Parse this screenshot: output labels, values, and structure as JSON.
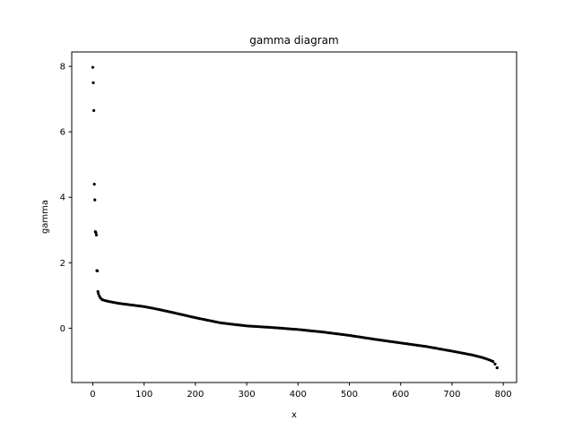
{
  "chart_data": {
    "type": "scatter",
    "title": "gamma diagram",
    "xlabel": "x",
    "ylabel": "gamma",
    "xlim": [
      -41,
      826
    ],
    "ylim": [
      -1.66,
      8.44
    ],
    "xticks": [
      0,
      100,
      200,
      300,
      400,
      500,
      600,
      700,
      800
    ],
    "yticks": [
      0,
      2,
      4,
      6,
      8
    ],
    "grid": false,
    "legend": "none",
    "marker_color": "#000000",
    "outliers": [
      {
        "x": 0,
        "y": 7.97
      },
      {
        "x": 1,
        "y": 7.5
      },
      {
        "x": 2,
        "y": 6.65
      },
      {
        "x": 3,
        "y": 4.4
      },
      {
        "x": 4,
        "y": 3.92
      },
      {
        "x": 5,
        "y": 2.95
      },
      {
        "x": 6,
        "y": 2.92
      },
      {
        "x": 7,
        "y": 2.85
      },
      {
        "x": 8,
        "y": 1.76
      },
      {
        "x": 9,
        "y": 1.75
      },
      {
        "x": 10,
        "y": 1.12
      },
      {
        "x": 11,
        "y": 1.05
      },
      {
        "x": 13,
        "y": 0.98
      },
      {
        "x": 15,
        "y": 0.92
      },
      {
        "x": 18,
        "y": 0.88
      }
    ],
    "curve": {
      "x": [
        20,
        30,
        50,
        80,
        100,
        120,
        150,
        200,
        250,
        300,
        350,
        400,
        450,
        500,
        550,
        600,
        650,
        700,
        740,
        760,
        775,
        780,
        783,
        785,
        786,
        787,
        788
      ],
      "y": [
        0.86,
        0.82,
        0.76,
        0.7,
        0.66,
        0.6,
        0.5,
        0.32,
        0.16,
        0.07,
        0.02,
        -0.04,
        -0.12,
        -0.22,
        -0.34,
        -0.45,
        -0.56,
        -0.7,
        -0.82,
        -0.9,
        -0.98,
        -1.02,
        -1.07,
        -1.12,
        -1.15,
        -1.18,
        -1.21
      ],
      "step": 4
    }
  }
}
